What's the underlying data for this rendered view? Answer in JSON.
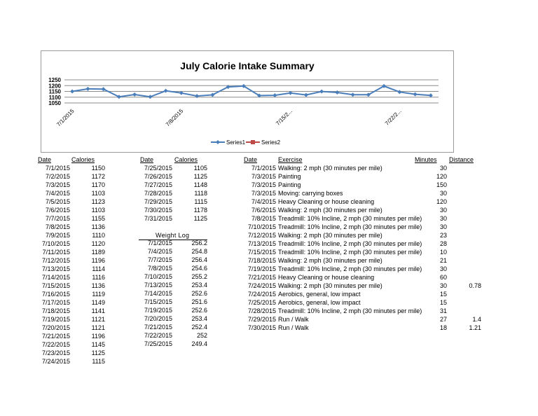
{
  "chart_data": {
    "type": "line",
    "title": "July Calorie Intake Summary",
    "yticks": [
      1250,
      1200,
      1150,
      1100,
      1050
    ],
    "ylim": [
      1050,
      1250
    ],
    "xtick_labels": [
      "7/1/2015",
      "7/8/2015",
      "7/15/2...",
      "7/22/2..."
    ],
    "legend_position": "bottom",
    "grid": true,
    "series": [
      {
        "name": "Series1",
        "color": "#4a7ebb",
        "values": [
          1150,
          1172,
          1170,
          1103,
          1123,
          1103,
          1155,
          1136,
          1110,
          1120,
          1189,
          1196,
          1114,
          1116,
          1136,
          1119,
          1149,
          1141,
          1121,
          1121,
          1196,
          1145,
          1125,
          1115
        ]
      },
      {
        "name": "Series2",
        "color": "#be4b48",
        "values": []
      }
    ]
  },
  "calories_left": {
    "headers": [
      "Date",
      "Calories"
    ],
    "rows": [
      [
        "7/1/2015",
        "1150"
      ],
      [
        "7/2/2015",
        "1172"
      ],
      [
        "7/3/2015",
        "1170"
      ],
      [
        "7/4/2015",
        "1103"
      ],
      [
        "7/5/2015",
        "1123"
      ],
      [
        "7/6/2015",
        "1103"
      ],
      [
        "7/7/2015",
        "1155"
      ],
      [
        "7/8/2015",
        "1136"
      ],
      [
        "7/9/2015",
        "1110"
      ],
      [
        "7/10/2015",
        "1120"
      ],
      [
        "7/11/2015",
        "1189"
      ],
      [
        "7/12/2015",
        "1196"
      ],
      [
        "7/13/2015",
        "1114"
      ],
      [
        "7/14/2015",
        "1116"
      ],
      [
        "7/15/2015",
        "1136"
      ],
      [
        "7/16/2015",
        "1119"
      ],
      [
        "7/17/2015",
        "1149"
      ],
      [
        "7/18/2015",
        "1141"
      ],
      [
        "7/19/2015",
        "1121"
      ],
      [
        "7/20/2015",
        "1121"
      ],
      [
        "7/21/2015",
        "1196"
      ],
      [
        "7/22/2015",
        "1145"
      ],
      [
        "7/23/2015",
        "1125"
      ],
      [
        "7/24/2015",
        "1115"
      ]
    ]
  },
  "calories_right": {
    "headers": [
      "Date",
      "Calories"
    ],
    "rows": [
      [
        "7/25/2015",
        "1105"
      ],
      [
        "7/26/2015",
        "1125"
      ],
      [
        "7/27/2015",
        "1148"
      ],
      [
        "7/28/2015",
        "1118"
      ],
      [
        "7/29/2015",
        "1115"
      ],
      [
        "7/30/2015",
        "1178"
      ],
      [
        "7/31/2015",
        "1125"
      ]
    ]
  },
  "weight_log": {
    "title": "Weight Log",
    "rows": [
      [
        "7/1/2015",
        "256.2"
      ],
      [
        "7/4/2015",
        "254.8"
      ],
      [
        "7/7/2015",
        "256.4"
      ],
      [
        "7/8/2015",
        "254.6"
      ],
      [
        "7/10/2015",
        "255.2"
      ],
      [
        "7/13/2015",
        "253.4"
      ],
      [
        "7/14/2015",
        "252.6"
      ],
      [
        "7/15/2015",
        "251.6"
      ],
      [
        "7/19/2015",
        "252.6"
      ],
      [
        "7/20/2015",
        "253.4"
      ],
      [
        "7/21/2015",
        "252.4"
      ],
      [
        "7/22/2015",
        "252"
      ],
      [
        "7/25/2015",
        "249.4"
      ]
    ]
  },
  "exercise": {
    "headers": [
      "Date",
      "Exercise",
      "Minutes",
      "Distance"
    ],
    "rows": [
      [
        "7/1/2015",
        "Walking: 2 mph (30 minutes per mile)",
        "30",
        ""
      ],
      [
        "7/3/2015",
        "Painting",
        "120",
        ""
      ],
      [
        "7/3/2015",
        "Painting",
        "150",
        ""
      ],
      [
        "7/3/2015",
        "Moving: carrying boxes",
        "30",
        ""
      ],
      [
        "7/4/2015",
        "Heavy Cleaning or house cleaning",
        "120",
        ""
      ],
      [
        "7/6/2015",
        "Walking: 2 mph (30 minutes per mile)",
        "30",
        ""
      ],
      [
        "7/8/2015",
        "Treadmill: 10% Incline, 2 mph (30 minutes per mile)",
        "30",
        ""
      ],
      [
        "7/10/2015",
        "Treadmill: 10% Incline, 2 mph (30 minutes per mile)",
        "30",
        ""
      ],
      [
        "7/12/2015",
        "Walking: 2 mph (30 minutes per mile)",
        "23",
        ""
      ],
      [
        "7/13/2015",
        "Treadmill: 10% Incline, 2 mph (30 minutes per mile)",
        "28",
        ""
      ],
      [
        "7/15/2015",
        "Treadmill: 10% Incline, 2 mph (30 minutes per mile)",
        "10",
        ""
      ],
      [
        "7/18/2015",
        "Walking: 2 mph (30 minutes per mile)",
        "21",
        ""
      ],
      [
        "7/19/2015",
        "Treadmill: 10% Incline, 2 mph (30 minutes per mile)",
        "30",
        ""
      ],
      [
        "7/21/2015",
        "Heavy Cleaning or house cleaning",
        "60",
        ""
      ],
      [
        "7/24/2015",
        "Walking: 2 mph (30 minutes per mile)",
        "30",
        "0.78"
      ],
      [
        "7/24/2015",
        "Aerobics, general, low impact",
        "15",
        ""
      ],
      [
        "7/25/2015",
        "Aerobics, general, low impact",
        "15",
        ""
      ],
      [
        "7/28/2015",
        "Treadmill: 10% Incline, 2 mph (30 minutes per mile)",
        "31",
        ""
      ],
      [
        "7/29/2015",
        "Run / Walk",
        "27",
        "1.4"
      ],
      [
        "7/30/2015",
        "Run / Walk",
        "18",
        "1.21"
      ]
    ]
  }
}
